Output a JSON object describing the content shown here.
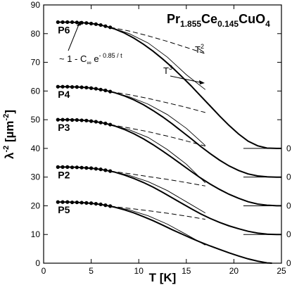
{
  "chart_data": {
    "type": "line",
    "title_parts": [
      "Pr",
      "1.855",
      "Ce",
      "0.145",
      "CuO",
      "4"
    ],
    "xlabel": "T [K]",
    "ylabel_parts": [
      "λ",
      "-2",
      " [µm",
      "-2",
      "]"
    ],
    "xlim": [
      0,
      25
    ],
    "ylim": [
      0,
      90
    ],
    "xticks": [
      0,
      5,
      10,
      15,
      20,
      25
    ],
    "yticks": [
      0,
      10,
      20,
      30,
      40,
      50,
      60,
      70,
      80,
      90
    ],
    "grid": false,
    "annotations": {
      "fit_label": [
        "~ 1 - C",
        "∞",
        " e",
        "- 0.85 / t"
      ],
      "t2": [
        "T",
        "2"
      ],
      "t3": [
        "T",
        "3"
      ]
    },
    "series": [
      {
        "name": "P6",
        "offset_label": "0",
        "offset": 40,
        "x": [
          1.5,
          2.5,
          3.5,
          4.5,
          5.5,
          6.5,
          7.5,
          8.5,
          9.5,
          10.5,
          11.5,
          12.5,
          13.5,
          14.5,
          15.5,
          16.5,
          17.5,
          18.5,
          19.5,
          20.5,
          21.5,
          22.5,
          23.5,
          24.5,
          25
        ],
        "y": [
          84.0,
          84.0,
          83.9,
          83.7,
          83.3,
          82.6,
          81.6,
          80.2,
          78.4,
          76.3,
          73.9,
          71.2,
          68.3,
          65.1,
          61.8,
          58.3,
          54.8,
          51.3,
          48.0,
          45.0,
          42.5,
          40.9,
          40.1,
          40.0,
          40.0
        ]
      },
      {
        "name": "P4",
        "offset_label": "0",
        "offset": 30,
        "x": [
          1.5,
          2.5,
          3.5,
          4.5,
          5.5,
          6.5,
          7.5,
          8.5,
          9.5,
          10.5,
          11.5,
          12.5,
          13.5,
          14.5,
          15.5,
          16.5,
          17.5,
          18.5,
          19.5,
          20.5,
          21.5,
          22.5,
          23.5,
          24.5,
          25
        ],
        "y": [
          61.5,
          61.5,
          61.4,
          61.2,
          60.8,
          60.2,
          59.4,
          58.3,
          56.9,
          55.2,
          53.2,
          51.0,
          48.6,
          46.0,
          43.4,
          40.7,
          38.2,
          35.9,
          33.9,
          32.3,
          31.1,
          30.4,
          30.1,
          30.0,
          30.0
        ]
      },
      {
        "name": "P3",
        "offset_label": "0",
        "offset": 20,
        "x": [
          1.5,
          2.5,
          3.5,
          4.5,
          5.5,
          6.5,
          7.5,
          8.5,
          9.5,
          10.5,
          11.5,
          12.5,
          13.5,
          14.5,
          15.5,
          16.5,
          17.5,
          18.5,
          19.5,
          20.5,
          21.5,
          22.5,
          23.5,
          24.5,
          25
        ],
        "y": [
          50.0,
          50.0,
          49.9,
          49.7,
          49.3,
          48.7,
          47.8,
          46.6,
          45.1,
          43.3,
          41.3,
          39.1,
          36.8,
          34.4,
          32.0,
          29.7,
          27.6,
          25.7,
          24.0,
          22.6,
          21.4,
          20.6,
          20.2,
          20.0,
          20.0
        ]
      },
      {
        "name": "P2",
        "offset_label": "0",
        "offset": 10,
        "x": [
          1.5,
          2.5,
          3.5,
          4.5,
          5.5,
          6.5,
          7.5,
          8.5,
          9.5,
          10.5,
          11.5,
          12.5,
          13.5,
          14.5,
          15.5,
          16.5,
          17.5,
          18.5,
          19.5,
          20.5,
          21.5,
          22.5,
          23.5,
          24.5,
          25
        ],
        "y": [
          33.5,
          33.5,
          33.4,
          33.2,
          32.9,
          32.4,
          31.7,
          30.7,
          29.5,
          28.1,
          26.5,
          24.7,
          22.8,
          20.9,
          19.0,
          17.2,
          15.6,
          14.2,
          13.0,
          12.0,
          11.1,
          10.5,
          10.1,
          10.0,
          10.0
        ]
      },
      {
        "name": "P5",
        "offset_label": "0",
        "offset": 0,
        "x": [
          1.5,
          2.5,
          3.5,
          4.5,
          5.5,
          6.5,
          7.5,
          8.5,
          9.5,
          10.5,
          11.5,
          12.5,
          13.5,
          14.5,
          15.5,
          16.5,
          17.5,
          18.5,
          19.5,
          20.5,
          21.5,
          22.5,
          23.5,
          24.0
        ],
        "y": [
          21.3,
          21.3,
          21.2,
          21.0,
          20.7,
          20.2,
          19.5,
          18.6,
          17.5,
          16.2,
          14.8,
          13.3,
          11.7,
          10.2,
          8.7,
          7.3,
          6.0,
          4.8,
          3.6,
          2.5,
          1.5,
          0.7,
          0.1,
          0.0
        ]
      }
    ],
    "data_points": [
      {
        "name": "P6",
        "x": [
          1.5,
          2.0,
          2.5,
          3.0,
          3.5,
          4.0,
          4.5,
          5.0,
          5.5,
          6.0,
          6.5,
          7.0
        ],
        "y": [
          84.0,
          84.0,
          84.0,
          84.0,
          83.9,
          83.8,
          83.7,
          83.5,
          83.3,
          83.0,
          82.6,
          82.2
        ]
      },
      {
        "name": "P4",
        "x": [
          1.5,
          2.0,
          2.5,
          3.0,
          3.5,
          4.0,
          4.5,
          5.0,
          5.5,
          6.0,
          6.5,
          7.0
        ],
        "y": [
          61.5,
          61.5,
          61.5,
          61.4,
          61.4,
          61.3,
          61.2,
          61.0,
          60.8,
          60.5,
          60.2,
          59.8
        ]
      },
      {
        "name": "P3",
        "x": [
          1.5,
          2.0,
          2.5,
          3.0,
          3.5,
          4.0,
          4.5,
          5.0,
          5.5,
          6.0,
          6.5,
          7.0
        ],
        "y": [
          50.0,
          50.0,
          50.0,
          49.9,
          49.9,
          49.8,
          49.7,
          49.5,
          49.3,
          49.0,
          48.7,
          48.3
        ]
      },
      {
        "name": "P2",
        "x": [
          1.5,
          2.0,
          2.5,
          3.0,
          3.5,
          4.0,
          4.5,
          5.0,
          5.5,
          6.0,
          6.5,
          7.0
        ],
        "y": [
          33.5,
          33.5,
          33.5,
          33.4,
          33.4,
          33.3,
          33.2,
          33.1,
          32.9,
          32.7,
          32.4,
          32.1
        ]
      },
      {
        "name": "P5",
        "x": [
          1.5,
          2.0,
          2.5,
          3.0,
          3.5,
          4.0,
          4.5,
          5.0,
          5.5,
          6.0,
          6.5,
          7.0
        ],
        "y": [
          21.3,
          21.3,
          21.3,
          21.2,
          21.2,
          21.1,
          21.0,
          20.9,
          20.7,
          20.5,
          20.2,
          19.9
        ]
      }
    ],
    "fits_t2_dashed": [
      {
        "name": "P6",
        "x": [
          7,
          9,
          11,
          13,
          15,
          17
        ],
        "y": [
          82.2,
          80.9,
          79.2,
          77.3,
          75.2,
          73.0
        ]
      },
      {
        "name": "P4",
        "x": [
          7,
          9,
          11,
          13,
          15,
          17
        ],
        "y": [
          59.8,
          58.7,
          57.4,
          55.9,
          54.3,
          52.5
        ]
      },
      {
        "name": "P3",
        "x": [
          7,
          9,
          11,
          13,
          15,
          17
        ],
        "y": [
          48.3,
          47.1,
          45.8,
          44.3,
          42.6,
          40.8
        ]
      },
      {
        "name": "P2",
        "x": [
          7,
          9,
          11,
          13,
          15,
          17
        ],
        "y": [
          32.1,
          31.2,
          30.2,
          29.2,
          28.1,
          26.9
        ]
      },
      {
        "name": "P5",
        "x": [
          7,
          9,
          11,
          13,
          15,
          17
        ],
        "y": [
          19.9,
          19.1,
          18.3,
          17.4,
          16.4,
          15.3
        ]
      }
    ],
    "fits_t3_thin": [
      {
        "name": "P6",
        "x": [
          7,
          9,
          11,
          13,
          15,
          17
        ],
        "y": [
          82.2,
          80.0,
          76.7,
          71.8,
          65.7,
          60.5
        ]
      },
      {
        "name": "P4",
        "x": [
          7,
          9,
          11,
          13,
          15,
          17
        ],
        "y": [
          59.8,
          58.0,
          55.4,
          51.8,
          47.0,
          41.0
        ]
      },
      {
        "name": "P3",
        "x": [
          7,
          9,
          11,
          13,
          15,
          17
        ],
        "y": [
          48.3,
          46.5,
          43.8,
          39.6,
          34.5,
          28.0
        ]
      },
      {
        "name": "P2",
        "x": [
          7,
          9,
          11,
          13,
          15,
          17
        ],
        "y": [
          32.1,
          30.6,
          28.4,
          25.3,
          21.4,
          17.5
        ]
      },
      {
        "name": "P5",
        "x": [
          7,
          9,
          11,
          13,
          15,
          17
        ],
        "y": [
          19.9,
          18.6,
          16.5,
          13.6,
          10.0,
          6.3
        ]
      }
    ]
  }
}
